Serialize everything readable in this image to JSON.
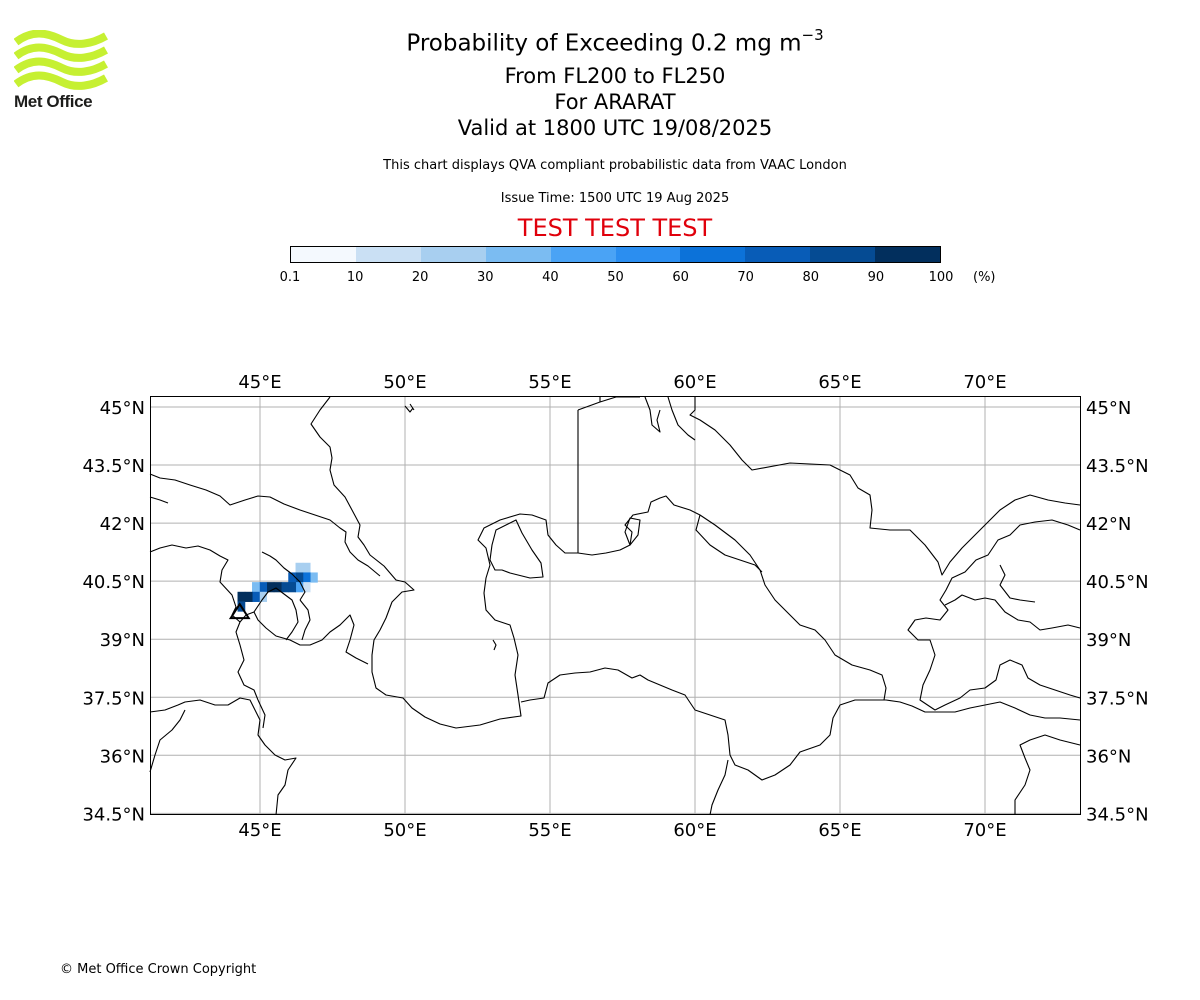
{
  "logo": {
    "text": "Met Office",
    "colors": {
      "waves": "#c6f032",
      "text": "#1d1d1b"
    }
  },
  "header": {
    "title_main": "Probability of Exceeding 0.2 mg m",
    "title_exponent": "−3",
    "levels": "From FL200 to FL250",
    "volcano": "For ARARAT",
    "valid": "Valid at 1800 UTC 19/08/2025",
    "disclaimer": "This chart displays QVA compliant probabilistic data from VAAC London",
    "issue_time": "Issue Time: 1500 UTC 19 Aug 2025",
    "test_banner": "TEST TEST TEST"
  },
  "colorbar": {
    "ticks": [
      "0.1",
      "10",
      "20",
      "30",
      "40",
      "50",
      "60",
      "70",
      "80",
      "90",
      "100"
    ],
    "unit": "(%)",
    "colors": [
      "#f4f9fe",
      "#cae0f4",
      "#a8cff0",
      "#7bbcf2",
      "#4aa3f5",
      "#2b8ef0",
      "#0c72d9",
      "#085cb7",
      "#054b93",
      "#022f5d"
    ]
  },
  "map": {
    "top_lon_labels": [
      "45°E",
      "50°E",
      "55°E",
      "60°E",
      "65°E",
      "70°E"
    ],
    "bottom_lon_labels": [
      "45°E",
      "50°E",
      "55°E",
      "60°E",
      "65°E",
      "70°E"
    ],
    "left_lat_labels": [
      "45°N",
      "43.5°N",
      "42°N",
      "40.5°N",
      "39°N",
      "37.5°N",
      "36°N",
      "34.5°N"
    ],
    "right_lat_labels": [
      "45°N",
      "43.5°N",
      "42°N",
      "40.5°N",
      "39°N",
      "37.5°N",
      "36°N",
      "34.5°N"
    ],
    "lon_ticks": [
      45,
      50,
      55,
      60,
      65,
      70
    ],
    "lat_ticks": [
      45,
      43.5,
      42,
      40.5,
      39,
      37.5,
      36,
      34.5
    ],
    "volcano_lon": 44.3,
    "volcano_lat": 39.7,
    "plume_cells": [
      {
        "lon": 46.35,
        "lat": 40.85,
        "pct": 25
      },
      {
        "lon": 46.6,
        "lat": 40.85,
        "pct": 25
      },
      {
        "lon": 46.85,
        "lat": 40.6,
        "pct": 35
      },
      {
        "lon": 46.6,
        "lat": 40.6,
        "pct": 65
      },
      {
        "lon": 46.35,
        "lat": 40.6,
        "pct": 85
      },
      {
        "lon": 46.1,
        "lat": 40.6,
        "pct": 75
      },
      {
        "lon": 46.6,
        "lat": 40.35,
        "pct": 15
      },
      {
        "lon": 46.35,
        "lat": 40.35,
        "pct": 45
      },
      {
        "lon": 46.1,
        "lat": 40.35,
        "pct": 85
      },
      {
        "lon": 45.85,
        "lat": 40.35,
        "pct": 85
      },
      {
        "lon": 45.6,
        "lat": 40.35,
        "pct": 95
      },
      {
        "lon": 45.35,
        "lat": 40.35,
        "pct": 95
      },
      {
        "lon": 45.1,
        "lat": 40.35,
        "pct": 75
      },
      {
        "lon": 44.85,
        "lat": 40.35,
        "pct": 35
      },
      {
        "lon": 45.1,
        "lat": 40.1,
        "pct": 25
      },
      {
        "lon": 44.85,
        "lat": 40.1,
        "pct": 75
      },
      {
        "lon": 44.6,
        "lat": 40.1,
        "pct": 95
      },
      {
        "lon": 44.35,
        "lat": 40.1,
        "pct": 95
      },
      {
        "lon": 44.35,
        "lat": 39.85,
        "pct": 85
      }
    ]
  },
  "footer": {
    "copyright": "© Met Office Crown Copyright"
  }
}
